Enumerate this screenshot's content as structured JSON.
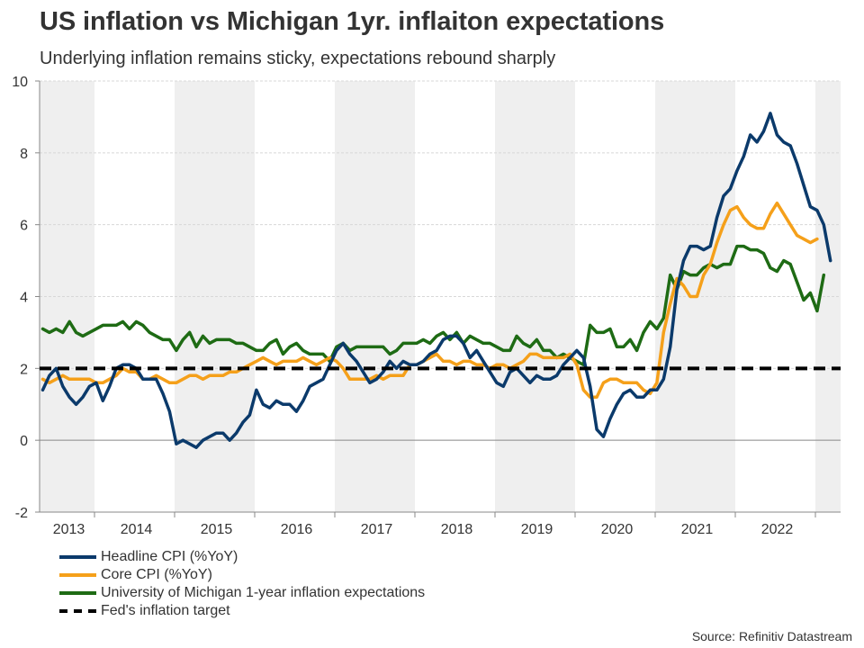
{
  "title": "US inflation vs Michigan 1yr. inflaiton expectations",
  "subtitle": "Underlying inflation remains sticky, expectations rebound sharply",
  "source": "Source: Refinitiv Datastream",
  "chart_data": {
    "type": "line",
    "title": "US inflation vs Michigan 1yr. inflaiton expectations",
    "subtitle": "Underlying inflation remains sticky, expectations rebound sharply",
    "xlabel": "",
    "ylabel": "",
    "x_start": "2013-05",
    "x_end": "2023-04",
    "x_frequency": "monthly",
    "ylim": [
      -2,
      10
    ],
    "yticks": [
      -2,
      0,
      2,
      4,
      6,
      8,
      10
    ],
    "xtick_labels": [
      "2013",
      "2014",
      "2015",
      "2016",
      "2017",
      "2018",
      "2019",
      "2020",
      "2021",
      "2022"
    ],
    "grid": "horizontal dashed",
    "shaded_years": [
      "2013",
      "2015",
      "2017",
      "2019",
      "2021",
      "2023"
    ],
    "legend_position": "bottom-left",
    "series": [
      {
        "name": "Headline CPI (%YoY)",
        "color": "#0b3a6b",
        "start": "2013-05",
        "values": [
          1.4,
          1.8,
          2.0,
          1.5,
          1.2,
          1.0,
          1.2,
          1.5,
          1.6,
          1.1,
          1.5,
          2.0,
          2.1,
          2.1,
          2.0,
          1.7,
          1.7,
          1.7,
          1.3,
          0.8,
          -0.1,
          0.0,
          -0.1,
          -0.2,
          0.0,
          0.1,
          0.2,
          0.2,
          0.0,
          0.2,
          0.5,
          0.7,
          1.4,
          1.0,
          0.9,
          1.1,
          1.0,
          1.0,
          0.8,
          1.1,
          1.5,
          1.6,
          1.7,
          2.1,
          2.5,
          2.7,
          2.4,
          2.2,
          1.9,
          1.6,
          1.7,
          1.9,
          2.2,
          2.0,
          2.2,
          2.1,
          2.1,
          2.2,
          2.4,
          2.5,
          2.8,
          2.9,
          2.9,
          2.7,
          2.3,
          2.5,
          2.2,
          1.9,
          1.6,
          1.5,
          1.9,
          2.0,
          1.8,
          1.6,
          1.8,
          1.7,
          1.7,
          1.8,
          2.1,
          2.3,
          2.5,
          2.3,
          1.5,
          0.3,
          0.1,
          0.6,
          1.0,
          1.3,
          1.4,
          1.2,
          1.2,
          1.4,
          1.4,
          1.7,
          2.6,
          4.2,
          5.0,
          5.4,
          5.4,
          5.3,
          5.4,
          6.2,
          6.8,
          7.0,
          7.5,
          7.9,
          8.5,
          8.3,
          8.6,
          9.1,
          8.5,
          8.3,
          8.2,
          7.7,
          7.1,
          6.5,
          6.4,
          6.0,
          5.0
        ],
        "unit": "%"
      },
      {
        "name": "Core CPI (%YoY)",
        "color": "#f5a01a",
        "start": "2013-05",
        "values": [
          1.7,
          1.6,
          1.7,
          1.8,
          1.7,
          1.7,
          1.7,
          1.7,
          1.6,
          1.6,
          1.7,
          1.8,
          2.0,
          1.9,
          1.9,
          1.7,
          1.7,
          1.8,
          1.7,
          1.6,
          1.6,
          1.7,
          1.8,
          1.8,
          1.7,
          1.8,
          1.8,
          1.8,
          1.9,
          1.9,
          2.0,
          2.1,
          2.2,
          2.3,
          2.2,
          2.1,
          2.2,
          2.2,
          2.2,
          2.3,
          2.2,
          2.1,
          2.2,
          2.3,
          2.2,
          2.0,
          1.7,
          1.7,
          1.7,
          1.7,
          1.8,
          1.7,
          1.8,
          1.8,
          1.8,
          2.1,
          2.1,
          2.2,
          2.3,
          2.4,
          2.2,
          2.2,
          2.1,
          2.2,
          2.2,
          2.1,
          2.1,
          2.0,
          2.1,
          2.1,
          2.0,
          2.1,
          2.2,
          2.4,
          2.4,
          2.3,
          2.3,
          2.3,
          2.3,
          2.4,
          2.1,
          1.4,
          1.2,
          1.2,
          1.6,
          1.7,
          1.7,
          1.6,
          1.6,
          1.6,
          1.4,
          1.3,
          1.6,
          3.0,
          3.8,
          4.5,
          4.3,
          4.0,
          4.0,
          4.6,
          4.9,
          5.5,
          6.0,
          6.4,
          6.5,
          6.2,
          6.0,
          5.9,
          5.9,
          6.3,
          6.6,
          6.3,
          6.0,
          5.7,
          5.6,
          5.5,
          5.6
        ],
        "unit": "%"
      },
      {
        "name": "University of Michigan 1-year inflation expectations",
        "color": "#1e6b14",
        "start": "2013-05",
        "values": [
          3.1,
          3.0,
          3.1,
          3.0,
          3.3,
          3.0,
          2.9,
          3.0,
          3.1,
          3.2,
          3.2,
          3.2,
          3.3,
          3.1,
          3.3,
          3.2,
          3.0,
          2.9,
          2.8,
          2.8,
          2.5,
          2.8,
          3.0,
          2.6,
          2.9,
          2.7,
          2.8,
          2.8,
          2.8,
          2.7,
          2.7,
          2.6,
          2.5,
          2.5,
          2.7,
          2.8,
          2.4,
          2.6,
          2.7,
          2.5,
          2.4,
          2.4,
          2.4,
          2.2,
          2.6,
          2.7,
          2.5,
          2.6,
          2.6,
          2.6,
          2.6,
          2.6,
          2.4,
          2.5,
          2.7,
          2.7,
          2.7,
          2.8,
          2.7,
          2.9,
          3.0,
          2.8,
          3.0,
          2.7,
          2.9,
          2.8,
          2.7,
          2.7,
          2.6,
          2.5,
          2.5,
          2.9,
          2.7,
          2.6,
          2.8,
          2.5,
          2.5,
          2.3,
          2.4,
          2.3,
          2.2,
          2.1,
          3.2,
          3.0,
          3.0,
          3.1,
          2.6,
          2.6,
          2.8,
          2.5,
          3.0,
          3.3,
          3.1,
          3.4,
          4.6,
          4.2,
          4.7,
          4.6,
          4.6,
          4.8,
          4.9,
          4.8,
          4.9,
          4.9,
          5.4,
          5.4,
          5.3,
          5.3,
          5.2,
          4.8,
          4.7,
          5.0,
          4.9,
          4.4,
          3.9,
          4.1,
          3.6,
          4.6
        ],
        "unit": "%"
      },
      {
        "name": "Fed's inflation target",
        "color": "#000000",
        "style": "dashed",
        "constant": 2
      }
    ]
  },
  "legend": [
    {
      "label": "Headline CPI (%YoY)",
      "color": "#0b3a6b",
      "style": "solid"
    },
    {
      "label": "Core CPI (%YoY)",
      "color": "#f5a01a",
      "style": "solid"
    },
    {
      "label": "University of Michigan 1-year inflation expectations",
      "color": "#1e6b14",
      "style": "solid"
    },
    {
      "label": "Fed's inflation target",
      "color": "#000000",
      "style": "dashed"
    }
  ]
}
